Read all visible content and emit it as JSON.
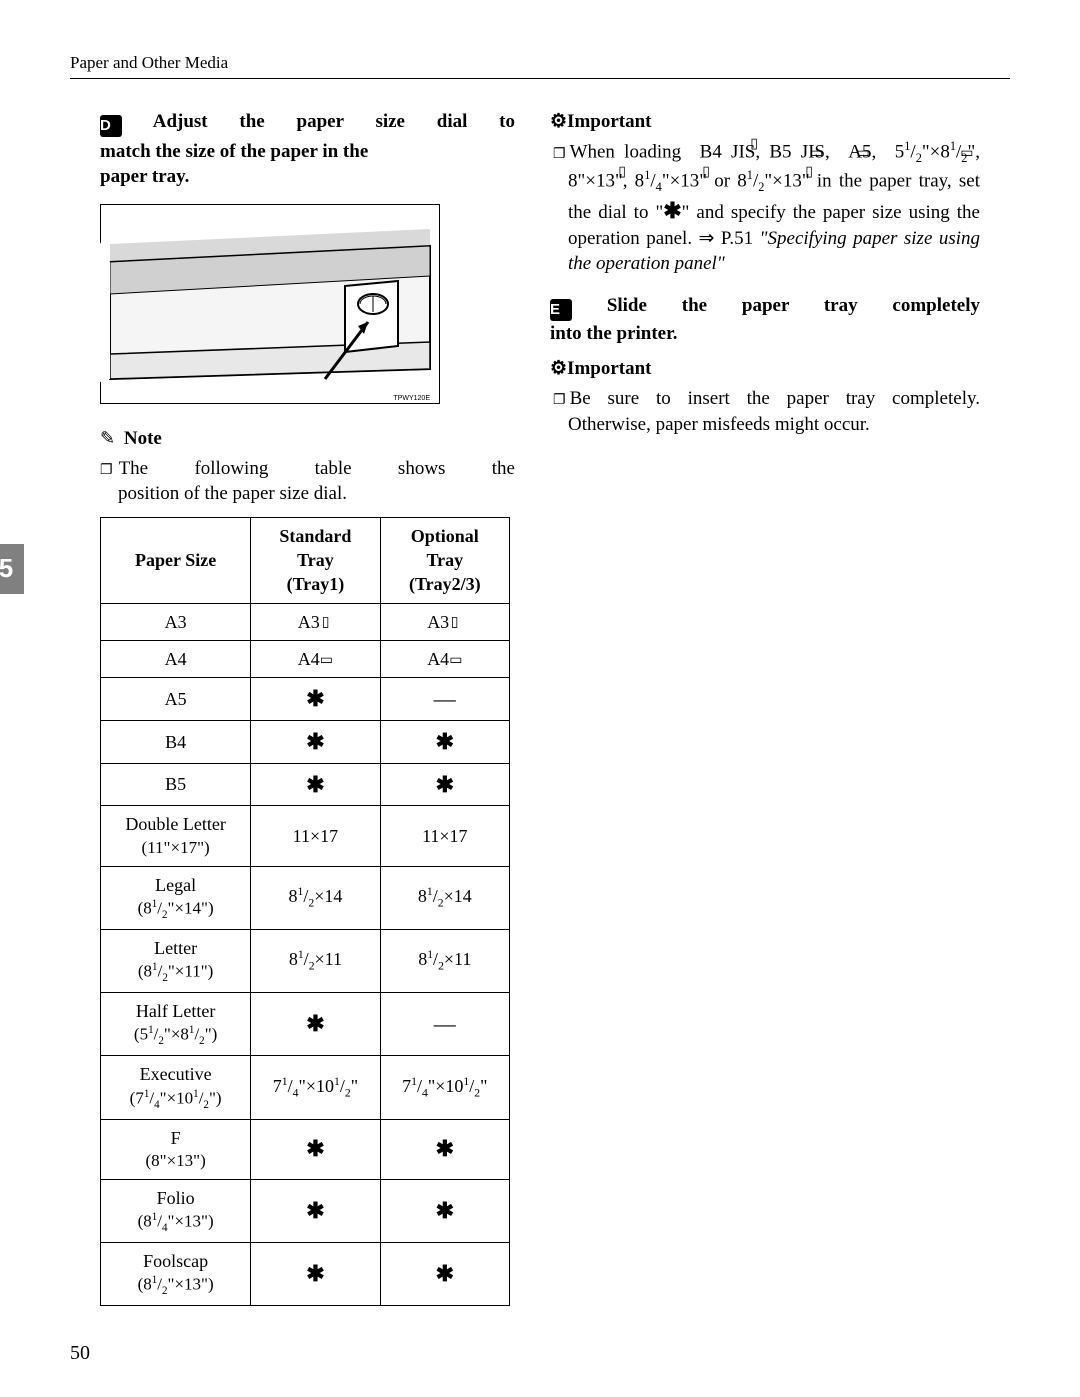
{
  "header": "Paper and Other Media",
  "page_number": "50",
  "side_tab": "5",
  "step4": {
    "num": "D",
    "text_l1": "Adjust the paper size dial to",
    "text_l2": "match the size of the paper in the",
    "text_l3": "paper tray."
  },
  "figure_caption": "TPWY120E",
  "note": {
    "label": "Note",
    "body_l1": "The following table shows the",
    "body_l2": "position of the paper size dial."
  },
  "table": {
    "headers": {
      "c1": "Paper Size",
      "c2a": "Standard",
      "c2b": "Tray",
      "c2c": "(Tray1)",
      "c3a": "Optional",
      "c3b": "Tray",
      "c3c": "(Tray2/3)"
    },
    "rows": [
      {
        "size": "A3",
        "size_sub": "",
        "t1": "A3▭P",
        "t2": "A3▭P"
      },
      {
        "size": "A4",
        "size_sub": "",
        "t1": "A4▭L",
        "t2": "A4▭L"
      },
      {
        "size": "A5",
        "size_sub": "",
        "t1": "star",
        "t2": "dash"
      },
      {
        "size": "B4",
        "size_sub": "",
        "t1": "star",
        "t2": "star"
      },
      {
        "size": "B5",
        "size_sub": "",
        "t1": "star",
        "t2": "star"
      },
      {
        "size": "Double Letter",
        "size_sub": "(11\"×17\")",
        "t1": "11×17",
        "t2": "11×17"
      },
      {
        "size": "Legal",
        "size_sub": "(8¹⁄₂\"×14\")",
        "t1": "8¹⁄₂×14",
        "t2": "8¹⁄₂×14"
      },
      {
        "size": "Letter",
        "size_sub": "(8¹⁄₂\"×11\")",
        "t1": "8¹⁄₂×11",
        "t2": "8¹⁄₂×11"
      },
      {
        "size": "Half Letter",
        "size_sub": "(5¹⁄₂\"×8¹⁄₂\")",
        "t1": "star",
        "t2": "dash"
      },
      {
        "size": "Executive",
        "size_sub": "(7¹⁄₄\"×10¹⁄₂\")",
        "t1": "7¹⁄₄\"×10¹⁄₂\"",
        "t2": "7¹⁄₄\"×10¹⁄₂\""
      },
      {
        "size": "F",
        "size_sub": "(8\"×13\")",
        "t1": "star",
        "t2": "star"
      },
      {
        "size": "Folio",
        "size_sub": "(8¹⁄₄\"×13\")",
        "t1": "star",
        "t2": "star"
      },
      {
        "size": "Foolscap",
        "size_sub": "(8¹⁄₂\"×13\")",
        "t1": "star",
        "t2": "star"
      }
    ]
  },
  "step5": {
    "num": "E",
    "text_l1": "Slide the paper tray completely",
    "text_l2": "into the printer."
  },
  "important1": {
    "label": "Important",
    "body": "When loading  B4 JIS▯, B5 JIS▭, A5▭, 5¹⁄₂\"×8¹⁄₂\"▭, 8\"×13\"▯, 8¹⁄₄\"×13\"▯ or 8¹⁄₂\"×13\"▯ in the paper tray, set the dial to \"✱\" and specify the paper size using the operation panel. ⇒ P.51 ",
    "body_italic": "\"Specifying paper size using the operation panel\""
  },
  "important2": {
    "label": "Important",
    "body": "Be sure to insert the paper tray completely. Otherwise, paper misfeeds might occur."
  },
  "colors": {
    "text": "#000000",
    "bg": "#ffffff",
    "sidetab": "#808080",
    "fig_shade": "#d9d9d9"
  }
}
